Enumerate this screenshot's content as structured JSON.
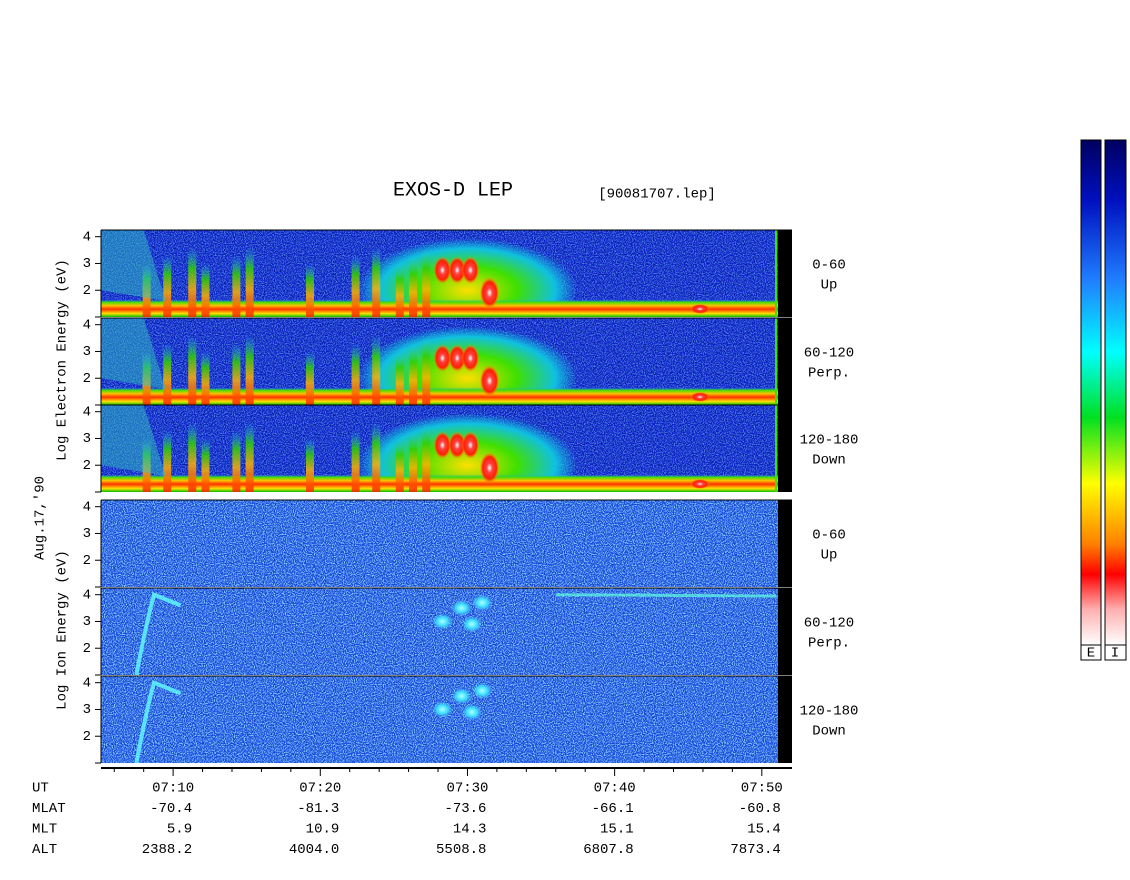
{
  "chart_data": {
    "type": "spectrogram",
    "title": "EXOS-D LEP",
    "subtitle": "[90081707.lep]",
    "date_label": "Aug.17,'90",
    "electron_ylabel": "Log Electron Energy (eV)",
    "ion_ylabel": "Log Ion Energy (eV)",
    "panels": [
      {
        "pitch_label": [
          "0-60",
          "Up"
        ]
      },
      {
        "pitch_label": [
          "60-120",
          "Perp."
        ]
      },
      {
        "pitch_label": [
          "120-180",
          "Down"
        ]
      },
      {
        "pitch_label": [
          "0-60",
          "Up"
        ]
      },
      {
        "pitch_label": [
          "60-120",
          "Perp."
        ]
      },
      {
        "pitch_label": [
          "120-180",
          "Down"
        ]
      }
    ],
    "ylim": [
      1,
      4.25
    ],
    "yticks": [
      2,
      3,
      4
    ],
    "xlim": [
      5.1,
      51.1
    ],
    "xticks": [
      {
        "value": 10,
        "label": "07:10"
      },
      {
        "value": 20,
        "label": "07:20"
      },
      {
        "value": 30,
        "label": "07:30"
      },
      {
        "value": 40,
        "label": "07:40"
      },
      {
        "value": 50,
        "label": "07:50"
      }
    ],
    "xminor": [
      6,
      8,
      12,
      14,
      16,
      18,
      22,
      24,
      26,
      28,
      32,
      34,
      36,
      38,
      42,
      44,
      46,
      48
    ],
    "ephemeris": [
      {
        "name": "UT"
      },
      {
        "name": "MLAT",
        "values": [
          -70.4,
          -81.3,
          -73.6,
          -66.1,
          -60.8
        ]
      },
      {
        "name": "MLT",
        "values": [
          5.9,
          10.9,
          14.3,
          15.1,
          15.4
        ]
      },
      {
        "name": "ALT",
        "values": [
          2388.2,
          {
            "value": 4004,
            "label": "4004.0"
          },
          5508.8,
          6807.8,
          7873.4
        ]
      }
    ],
    "colorbar_labels": [
      "E",
      "I"
    ]
  }
}
